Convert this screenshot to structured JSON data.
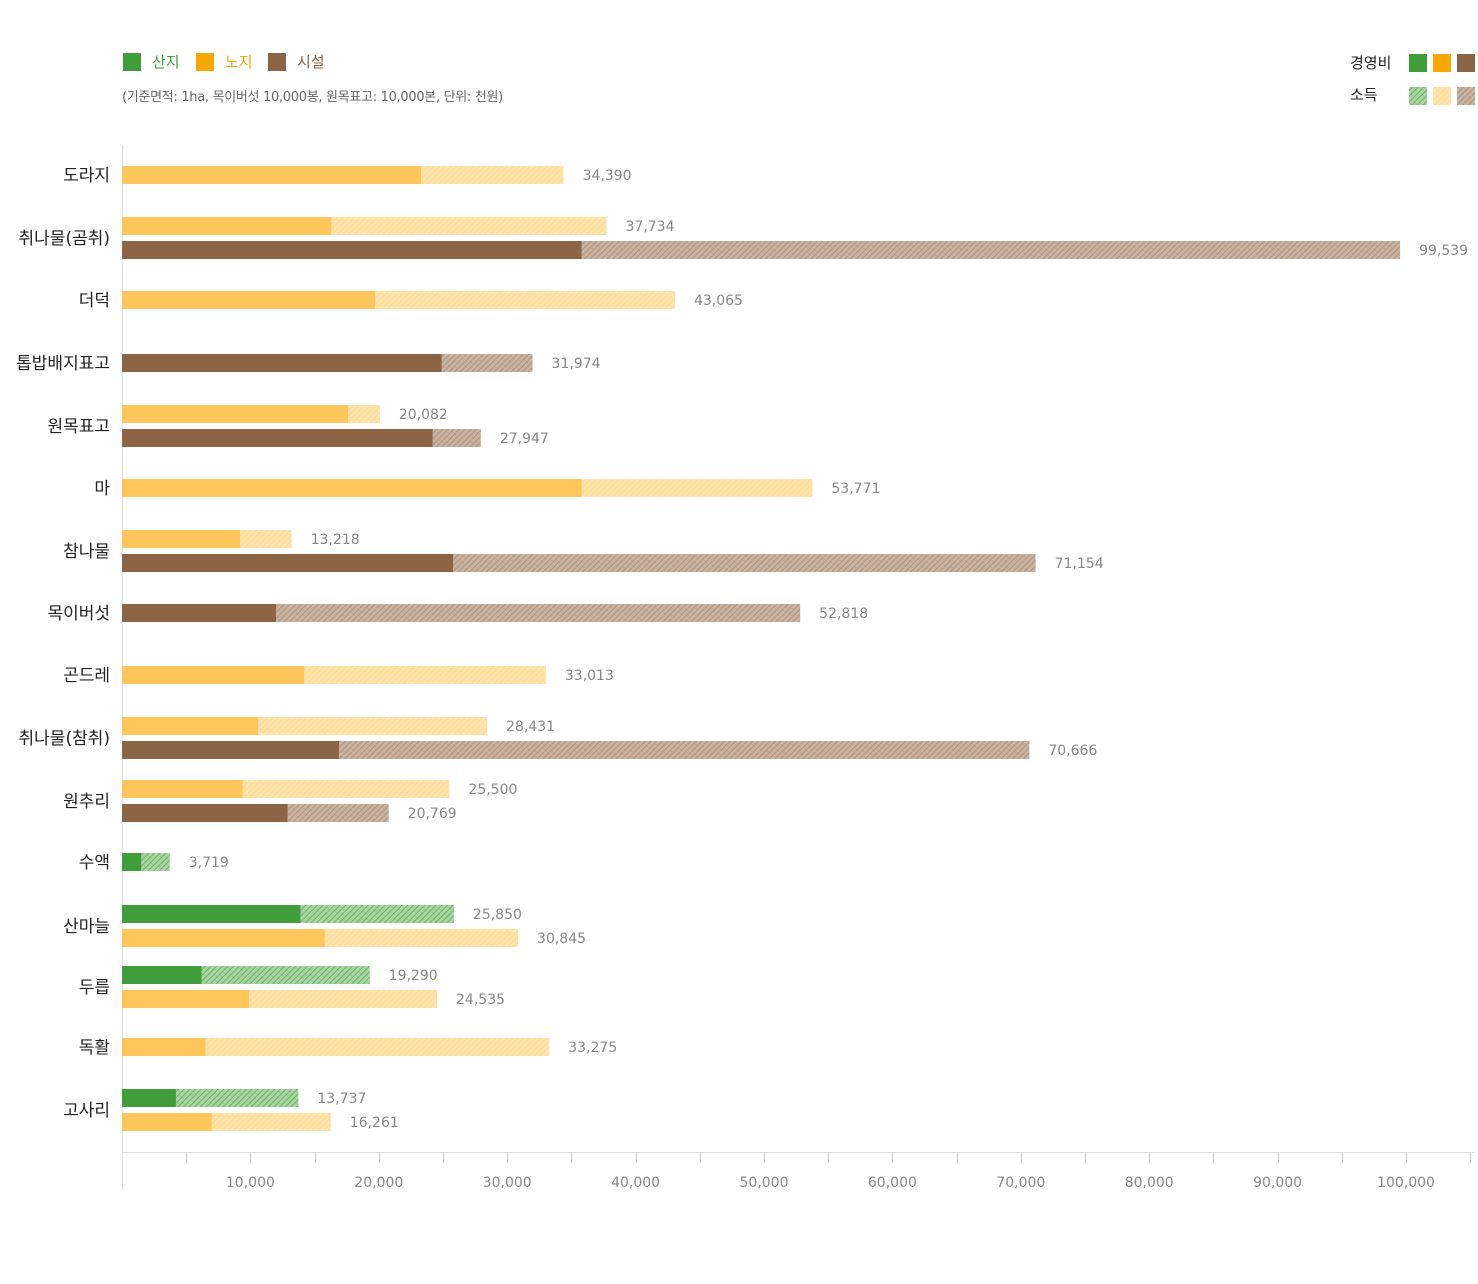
{
  "legend": {
    "series": [
      {
        "label": "산지",
        "color": "#3f9e3a"
      },
      {
        "label": "노지",
        "color": "#f7a800"
      },
      {
        "label": "시설",
        "color": "#8b6545"
      }
    ],
    "cost_label": "경영비",
    "income_label": "소득",
    "note": "(기준면적: 1ha, 목이버섯 10,000봉, 원목표고: 10,000본, 단위: 천원)"
  },
  "chart_data": {
    "type": "bar",
    "orientation": "horizontal",
    "stacked": true,
    "xlim": [
      0,
      105000
    ],
    "x_ticks": [
      10000,
      20000,
      30000,
      40000,
      50000,
      60000,
      70000,
      80000,
      90000,
      100000
    ],
    "x_tick_labels": [
      "10,000",
      "20,000",
      "30,000",
      "40,000",
      "50,000",
      "60,000",
      "70,000",
      "80,000",
      "90,000",
      "100,000"
    ],
    "components": [
      "경영비",
      "소득"
    ],
    "categories": [
      {
        "name": "도라지",
        "bars": [
          {
            "series": "노지",
            "cost": 23300,
            "total": 34390,
            "label": "34,390"
          }
        ]
      },
      {
        "name": "취나물(곰취)",
        "bars": [
          {
            "series": "노지",
            "cost": 16300,
            "total": 37734,
            "label": "37,734"
          },
          {
            "series": "시설",
            "cost": 35800,
            "total": 99539,
            "label": "99,539"
          }
        ]
      },
      {
        "name": "더덕",
        "bars": [
          {
            "series": "노지",
            "cost": 19700,
            "total": 43065,
            "label": "43,065"
          }
        ]
      },
      {
        "name": "톱밥배지표고",
        "bars": [
          {
            "series": "시설",
            "cost": 24900,
            "total": 31974,
            "label": "31,974"
          }
        ]
      },
      {
        "name": "원목표고",
        "bars": [
          {
            "series": "노지",
            "cost": 17600,
            "total": 20082,
            "label": "20,082"
          },
          {
            "series": "시설",
            "cost": 24200,
            "total": 27947,
            "label": "27,947"
          }
        ]
      },
      {
        "name": "마",
        "bars": [
          {
            "series": "노지",
            "cost": 35800,
            "total": 53771,
            "label": "53,771"
          }
        ]
      },
      {
        "name": "참나물",
        "bars": [
          {
            "series": "노지",
            "cost": 9200,
            "total": 13218,
            "label": "13,218"
          },
          {
            "series": "시설",
            "cost": 25800,
            "total": 71154,
            "label": "71,154"
          }
        ]
      },
      {
        "name": "목이버섯",
        "bars": [
          {
            "series": "시설",
            "cost": 12000,
            "total": 52818,
            "label": "52,818"
          }
        ]
      },
      {
        "name": "곤드레",
        "bars": [
          {
            "series": "노지",
            "cost": 14200,
            "total": 33013,
            "label": "33,013"
          }
        ]
      },
      {
        "name": "취나물(참취)",
        "bars": [
          {
            "series": "노지",
            "cost": 10600,
            "total": 28431,
            "label": "28,431"
          },
          {
            "series": "시설",
            "cost": 16900,
            "total": 70666,
            "label": "70,666"
          }
        ]
      },
      {
        "name": "원추리",
        "bars": [
          {
            "series": "노지",
            "cost": 9400,
            "total": 25500,
            "label": "25,500"
          },
          {
            "series": "시설",
            "cost": 12900,
            "total": 20769,
            "label": "20,769"
          }
        ]
      },
      {
        "name": "수액",
        "bars": [
          {
            "series": "산지",
            "cost": 1500,
            "total": 3719,
            "label": "3,719"
          }
        ]
      },
      {
        "name": "산마늘",
        "bars": [
          {
            "series": "산지",
            "cost": 13900,
            "total": 25850,
            "label": "25,850"
          },
          {
            "series": "노지",
            "cost": 15800,
            "total": 30845,
            "label": "30,845"
          }
        ]
      },
      {
        "name": "두릅",
        "bars": [
          {
            "series": "산지",
            "cost": 6200,
            "total": 19290,
            "label": "19,290"
          },
          {
            "series": "노지",
            "cost": 9900,
            "total": 24535,
            "label": "24,535"
          }
        ]
      },
      {
        "name": "독활",
        "bars": [
          {
            "series": "노지",
            "cost": 6500,
            "total": 33275,
            "label": "33,275"
          }
        ]
      },
      {
        "name": "고사리",
        "bars": [
          {
            "series": "산지",
            "cost": 4200,
            "total": 13737,
            "label": "13,737"
          },
          {
            "series": "노지",
            "cost": 7000,
            "total": 16261,
            "label": "16,261"
          }
        ]
      }
    ]
  }
}
